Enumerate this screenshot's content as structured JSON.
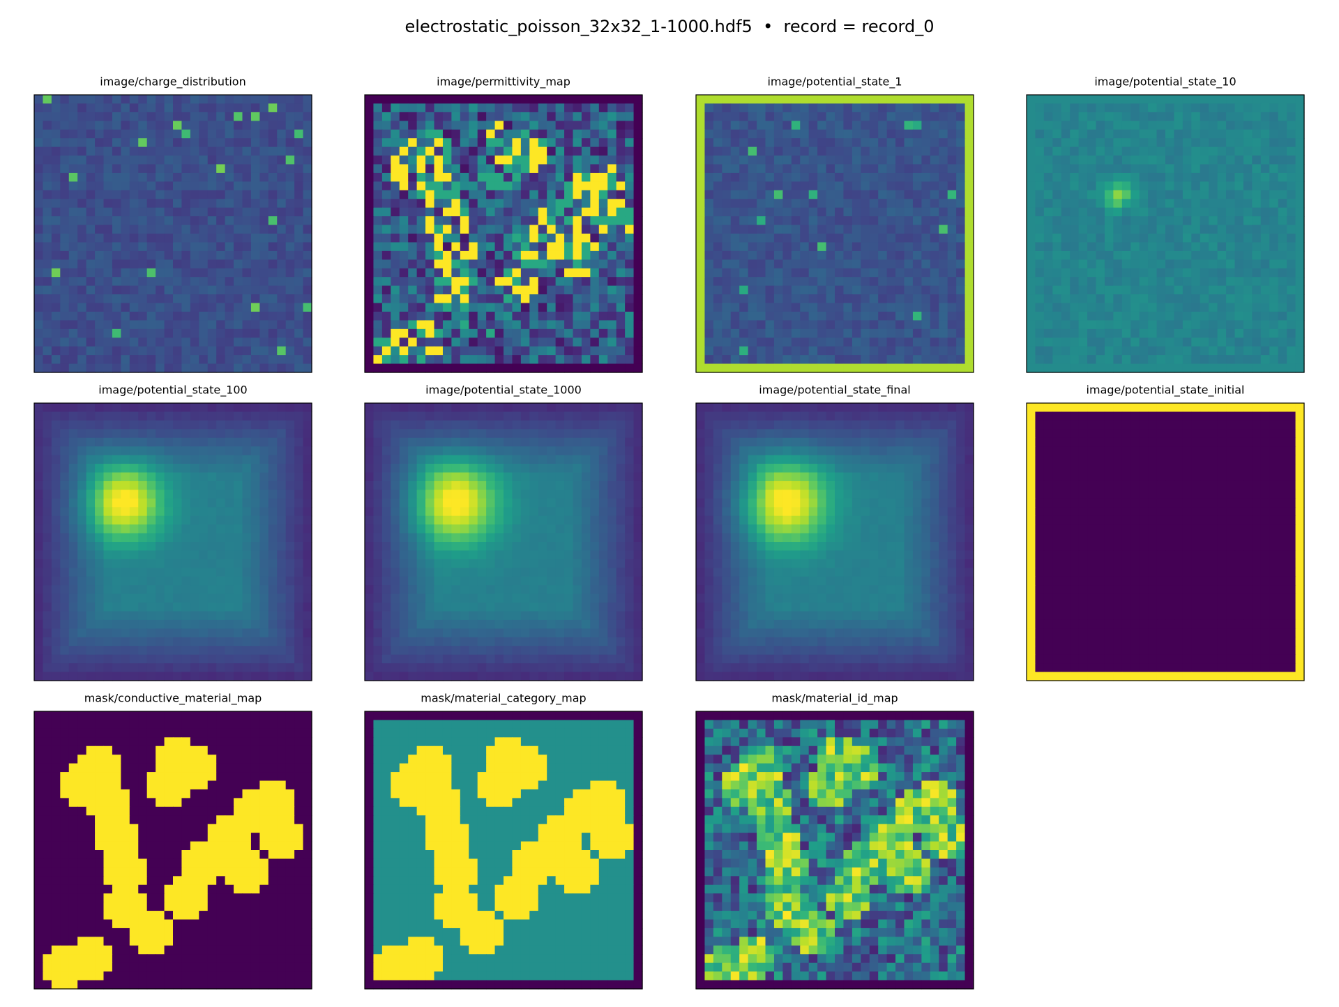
{
  "header": {
    "title": "electrostatic_poisson_32x32_1-1000.hdf5  •  record = record_0"
  },
  "panels": [
    {
      "title": "image/charge_distribution"
    },
    {
      "title": "image/permittivity_map"
    },
    {
      "title": "image/potential_state_1"
    },
    {
      "title": "image/potential_state_10"
    },
    {
      "title": "image/potential_state_100"
    },
    {
      "title": "image/potential_state_1000"
    },
    {
      "title": "image/potential_state_final"
    },
    {
      "title": "image/potential_state_initial"
    },
    {
      "title": "mask/conductive_material_map"
    },
    {
      "title": "mask/material_category_map"
    },
    {
      "title": "mask/material_id_map"
    }
  ]
}
